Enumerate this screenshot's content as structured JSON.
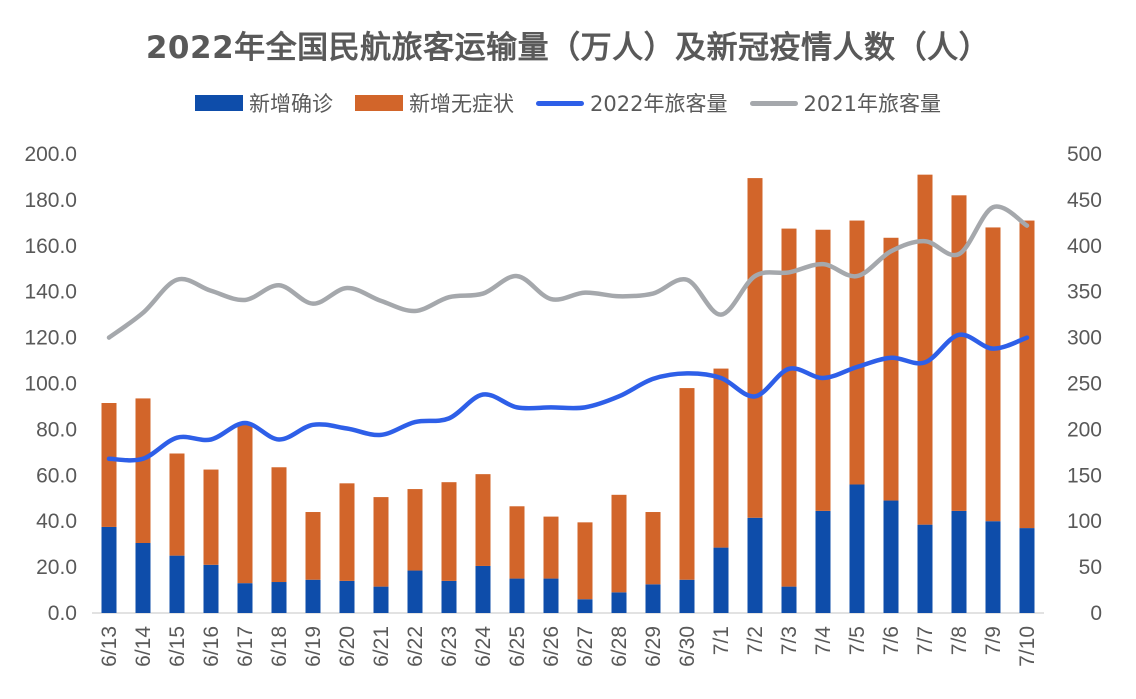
{
  "chart_data": {
    "type": "bar",
    "title": "2022年全国民航旅客运输量（万人）及新冠疫情人数（人）",
    "categories": [
      "6/13",
      "6/14",
      "6/15",
      "6/16",
      "6/17",
      "6/18",
      "6/19",
      "6/20",
      "6/21",
      "6/22",
      "6/23",
      "6/24",
      "6/25",
      "6/26",
      "6/27",
      "6/28",
      "6/29",
      "6/30",
      "7/1",
      "7/2",
      "7/3",
      "7/4",
      "7/5",
      "7/6",
      "7/7",
      "7/8",
      "7/9",
      "7/10"
    ],
    "legend_position": "top",
    "grid": false,
    "y_left": {
      "lim": [
        0,
        200
      ],
      "ticks": [
        "0.0",
        "20.0",
        "40.0",
        "60.0",
        "80.0",
        "100.0",
        "120.0",
        "140.0",
        "160.0",
        "180.0",
        "200.0"
      ]
    },
    "y_right": {
      "lim": [
        0,
        500
      ],
      "ticks": [
        "0",
        "50",
        "100",
        "150",
        "200",
        "250",
        "300",
        "350",
        "400",
        "450",
        "500"
      ]
    },
    "series": [
      {
        "name": "新增确诊",
        "type": "bar",
        "stacked": true,
        "axis": "left",
        "color": "#0E4DAA",
        "values": [
          37.5,
          30.5,
          25,
          21,
          13,
          13.5,
          14.5,
          14,
          11.5,
          18.5,
          14,
          20.5,
          15,
          15,
          6,
          9,
          12.5,
          14.5,
          28.5,
          41.5,
          11.5,
          44.5,
          56,
          49,
          38.5,
          44.5,
          40,
          37
        ]
      },
      {
        "name": "新增无症状",
        "type": "bar",
        "stacked": true,
        "axis": "left",
        "color": "#D2652A",
        "values": [
          54,
          63,
          44.5,
          41.5,
          69,
          50,
          29.5,
          42.5,
          39,
          35.5,
          43,
          40,
          31.5,
          27,
          33.5,
          42.5,
          31.5,
          83.5,
          78,
          148,
          156,
          122.5,
          115,
          114.5,
          152.5,
          137.5,
          128,
          134
        ]
      },
      {
        "name": "2022年旅客量",
        "type": "line",
        "axis": "right",
        "color": "#2E5FE8",
        "values": [
          168,
          168,
          191,
          189,
          207,
          189,
          205,
          201,
          194,
          208,
          212,
          238,
          224,
          224,
          224,
          236,
          255,
          261,
          256,
          236,
          266,
          256,
          268,
          278,
          273,
          303,
          288,
          300
        ]
      },
      {
        "name": "2021年旅客量",
        "type": "line",
        "axis": "right",
        "color": "#A5A8AC",
        "values": [
          300,
          327,
          363,
          351,
          341,
          357,
          337,
          354,
          340,
          329,
          344,
          348,
          367,
          342,
          349,
          345,
          348,
          363,
          325,
          367,
          371,
          380,
          367,
          394,
          405,
          391,
          442,
          422
        ]
      }
    ]
  }
}
